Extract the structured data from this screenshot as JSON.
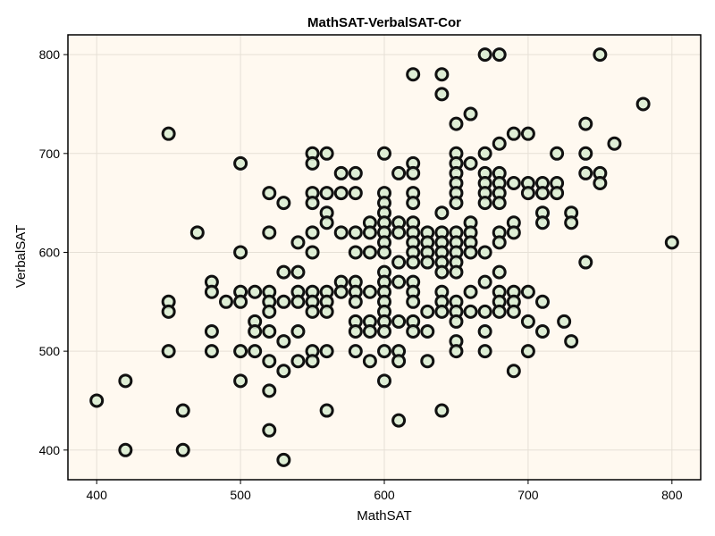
{
  "chart_data": {
    "type": "scatter",
    "title": "MathSAT-VerbalSAT-Cor",
    "xlabel": "MathSAT",
    "ylabel": "VerbalSAT",
    "xlim": [
      380,
      820
    ],
    "ylim": [
      370,
      820
    ],
    "xticks": [
      400,
      500,
      600,
      700,
      800
    ],
    "yticks": [
      400,
      500,
      600,
      700,
      800
    ],
    "grid": true,
    "colors": {
      "background": "#fff9f0",
      "marker_fill": "#d8ecd0",
      "marker_edge": "#111111",
      "grid": "#e6e0d6"
    },
    "points": [
      [
        400,
        450
      ],
      [
        420,
        470
      ],
      [
        420,
        400
      ],
      [
        450,
        720
      ],
      [
        450,
        550
      ],
      [
        450,
        540
      ],
      [
        450,
        500
      ],
      [
        460,
        440
      ],
      [
        460,
        400
      ],
      [
        470,
        620
      ],
      [
        480,
        570
      ],
      [
        480,
        560
      ],
      [
        480,
        520
      ],
      [
        480,
        500
      ],
      [
        490,
        550
      ],
      [
        500,
        690
      ],
      [
        500,
        600
      ],
      [
        500,
        560
      ],
      [
        500,
        550
      ],
      [
        500,
        500
      ],
      [
        500,
        470
      ],
      [
        510,
        560
      ],
      [
        510,
        530
      ],
      [
        510,
        520
      ],
      [
        510,
        500
      ],
      [
        520,
        660
      ],
      [
        520,
        620
      ],
      [
        520,
        560
      ],
      [
        520,
        550
      ],
      [
        520,
        540
      ],
      [
        520,
        520
      ],
      [
        520,
        490
      ],
      [
        520,
        460
      ],
      [
        520,
        420
      ],
      [
        530,
        650
      ],
      [
        530,
        580
      ],
      [
        530,
        550
      ],
      [
        530,
        510
      ],
      [
        530,
        480
      ],
      [
        530,
        390
      ],
      [
        540,
        610
      ],
      [
        540,
        580
      ],
      [
        540,
        560
      ],
      [
        540,
        550
      ],
      [
        540,
        520
      ],
      [
        540,
        490
      ],
      [
        550,
        700
      ],
      [
        550,
        690
      ],
      [
        550,
        660
      ],
      [
        550,
        650
      ],
      [
        550,
        620
      ],
      [
        550,
        600
      ],
      [
        550,
        560
      ],
      [
        550,
        550
      ],
      [
        550,
        540
      ],
      [
        550,
        500
      ],
      [
        550,
        490
      ],
      [
        560,
        700
      ],
      [
        560,
        660
      ],
      [
        560,
        640
      ],
      [
        560,
        630
      ],
      [
        560,
        560
      ],
      [
        560,
        550
      ],
      [
        560,
        540
      ],
      [
        560,
        500
      ],
      [
        560,
        440
      ],
      [
        570,
        680
      ],
      [
        570,
        660
      ],
      [
        570,
        620
      ],
      [
        570,
        570
      ],
      [
        570,
        560
      ],
      [
        580,
        680
      ],
      [
        580,
        660
      ],
      [
        580,
        620
      ],
      [
        580,
        600
      ],
      [
        580,
        570
      ],
      [
        580,
        560
      ],
      [
        580,
        550
      ],
      [
        580,
        530
      ],
      [
        580,
        520
      ],
      [
        580,
        500
      ],
      [
        590,
        630
      ],
      [
        590,
        620
      ],
      [
        590,
        600
      ],
      [
        590,
        560
      ],
      [
        590,
        530
      ],
      [
        590,
        520
      ],
      [
        590,
        490
      ],
      [
        600,
        700
      ],
      [
        600,
        660
      ],
      [
        600,
        650
      ],
      [
        600,
        640
      ],
      [
        600,
        630
      ],
      [
        600,
        620
      ],
      [
        600,
        610
      ],
      [
        600,
        600
      ],
      [
        600,
        580
      ],
      [
        600,
        570
      ],
      [
        600,
        560
      ],
      [
        600,
        550
      ],
      [
        600,
        540
      ],
      [
        600,
        530
      ],
      [
        600,
        520
      ],
      [
        600,
        500
      ],
      [
        600,
        470
      ],
      [
        610,
        680
      ],
      [
        610,
        630
      ],
      [
        610,
        620
      ],
      [
        610,
        590
      ],
      [
        610,
        570
      ],
      [
        610,
        530
      ],
      [
        610,
        500
      ],
      [
        610,
        490
      ],
      [
        610,
        430
      ],
      [
        620,
        780
      ],
      [
        620,
        690
      ],
      [
        620,
        680
      ],
      [
        620,
        660
      ],
      [
        620,
        650
      ],
      [
        620,
        630
      ],
      [
        620,
        620
      ],
      [
        620,
        610
      ],
      [
        620,
        600
      ],
      [
        620,
        590
      ],
      [
        620,
        570
      ],
      [
        620,
        560
      ],
      [
        620,
        550
      ],
      [
        620,
        530
      ],
      [
        620,
        520
      ],
      [
        630,
        620
      ],
      [
        630,
        610
      ],
      [
        630,
        600
      ],
      [
        630,
        590
      ],
      [
        630,
        540
      ],
      [
        630,
        520
      ],
      [
        630,
        490
      ],
      [
        640,
        780
      ],
      [
        640,
        760
      ],
      [
        640,
        640
      ],
      [
        640,
        620
      ],
      [
        640,
        610
      ],
      [
        640,
        600
      ],
      [
        640,
        590
      ],
      [
        640,
        580
      ],
      [
        640,
        560
      ],
      [
        640,
        550
      ],
      [
        640,
        540
      ],
      [
        640,
        440
      ],
      [
        650,
        730
      ],
      [
        650,
        700
      ],
      [
        650,
        690
      ],
      [
        650,
        680
      ],
      [
        650,
        670
      ],
      [
        650,
        660
      ],
      [
        650,
        650
      ],
      [
        650,
        620
      ],
      [
        650,
        610
      ],
      [
        650,
        600
      ],
      [
        650,
        590
      ],
      [
        650,
        580
      ],
      [
        650,
        550
      ],
      [
        650,
        540
      ],
      [
        650,
        530
      ],
      [
        650,
        510
      ],
      [
        650,
        500
      ],
      [
        660,
        740
      ],
      [
        660,
        690
      ],
      [
        660,
        630
      ],
      [
        660,
        620
      ],
      [
        660,
        610
      ],
      [
        660,
        600
      ],
      [
        660,
        560
      ],
      [
        660,
        540
      ],
      [
        670,
        800
      ],
      [
        670,
        700
      ],
      [
        670,
        680
      ],
      [
        670,
        670
      ],
      [
        670,
        660
      ],
      [
        670,
        650
      ],
      [
        670,
        600
      ],
      [
        670,
        570
      ],
      [
        670,
        540
      ],
      [
        670,
        520
      ],
      [
        670,
        500
      ],
      [
        680,
        800
      ],
      [
        680,
        710
      ],
      [
        680,
        680
      ],
      [
        680,
        670
      ],
      [
        680,
        660
      ],
      [
        680,
        650
      ],
      [
        680,
        620
      ],
      [
        680,
        610
      ],
      [
        680,
        580
      ],
      [
        680,
        560
      ],
      [
        680,
        550
      ],
      [
        680,
        540
      ],
      [
        690,
        720
      ],
      [
        690,
        670
      ],
      [
        690,
        630
      ],
      [
        690,
        620
      ],
      [
        690,
        560
      ],
      [
        690,
        550
      ],
      [
        690,
        540
      ],
      [
        690,
        480
      ],
      [
        700,
        720
      ],
      [
        700,
        670
      ],
      [
        700,
        660
      ],
      [
        700,
        560
      ],
      [
        700,
        530
      ],
      [
        700,
        500
      ],
      [
        710,
        670
      ],
      [
        710,
        660
      ],
      [
        710,
        640
      ],
      [
        710,
        630
      ],
      [
        710,
        550
      ],
      [
        710,
        520
      ],
      [
        720,
        700
      ],
      [
        720,
        670
      ],
      [
        720,
        660
      ],
      [
        725,
        530
      ],
      [
        730,
        640
      ],
      [
        730,
        630
      ],
      [
        730,
        510
      ],
      [
        740,
        730
      ],
      [
        740,
        700
      ],
      [
        740,
        680
      ],
      [
        740,
        590
      ],
      [
        750,
        800
      ],
      [
        750,
        680
      ],
      [
        750,
        670
      ],
      [
        760,
        710
      ],
      [
        780,
        750
      ],
      [
        800,
        610
      ]
    ]
  }
}
